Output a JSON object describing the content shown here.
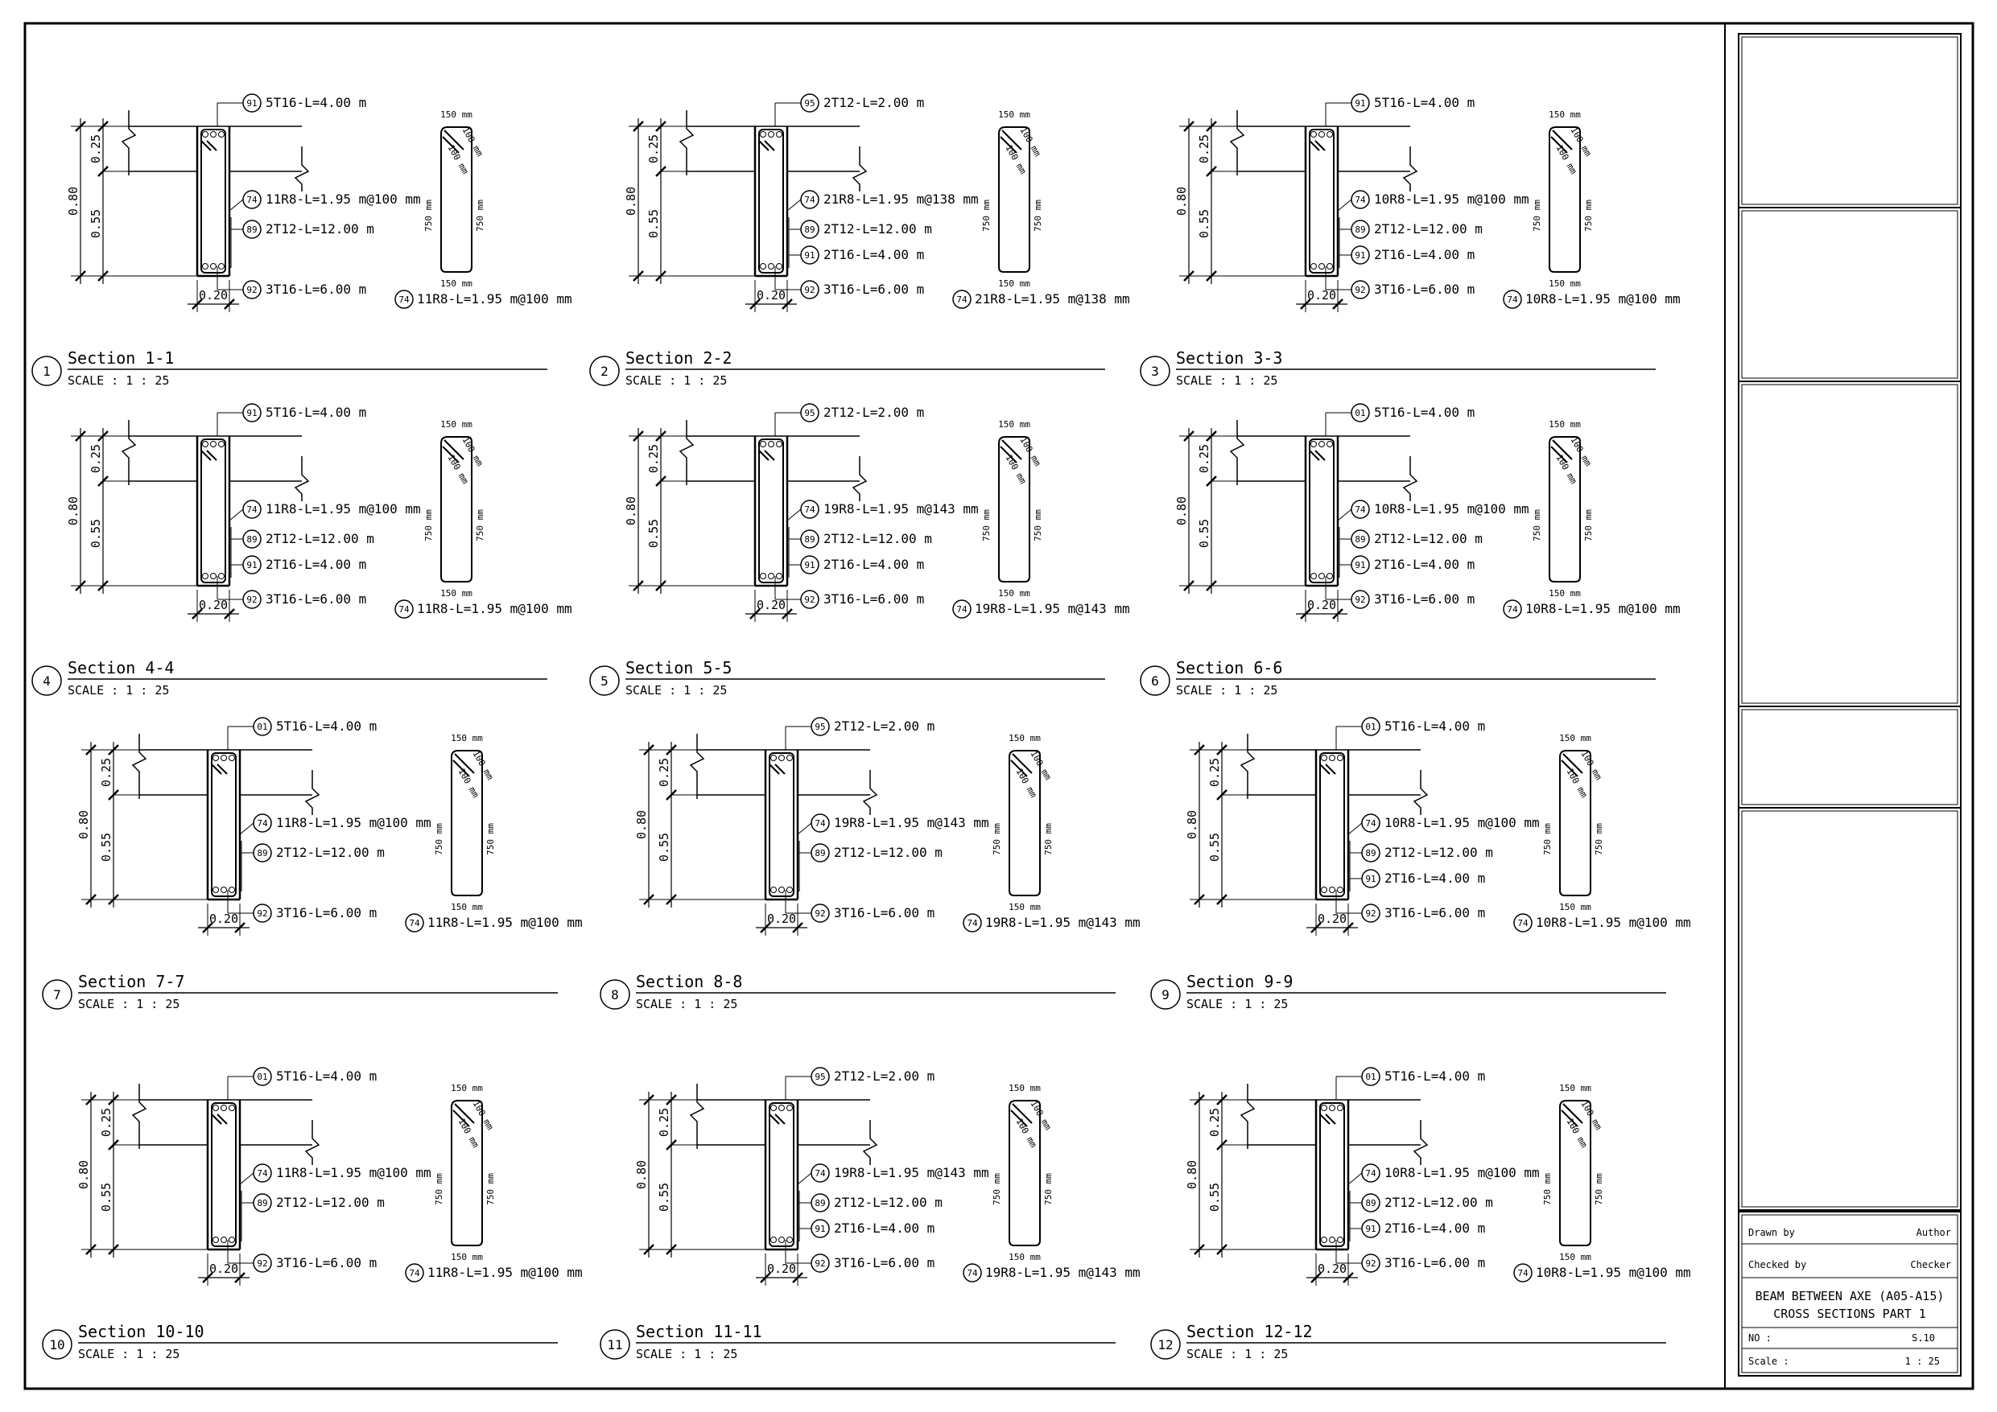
{
  "title_block": {
    "drawn_by_label": "Drawn by",
    "drawn_by_value": "Author",
    "checked_by_label": "Checked by",
    "checked_by_value": "Checker",
    "title_line1": "BEAM BETWEEN AXE (A05-A15)",
    "title_line2": "CROSS SECTIONS PART 1",
    "no_label": "NO :",
    "no_value": "S.10",
    "scale_label": "Scale :",
    "scale_value": "1 : 25"
  },
  "sections": [
    {
      "num": "1",
      "title": "Section 1-1",
      "scale": "SCALE :  1 : 25",
      "top_tag": "91",
      "top": "5T16-L=4.00 m",
      "stirrup_tag": "74",
      "stirrup": "11R8-L=1.95 m@100 mm",
      "callouts": [
        {
          "tag": "89",
          "text": "2T12-L=12.00 m"
        }
      ],
      "bottom_tag": "92",
      "bottom": "3T16-L=6.00 m",
      "dim_total": "0.80",
      "dim_top": "0.25",
      "dim_web": "0.55",
      "dim_width": "0.20",
      "shape": {
        "top": "150 mm",
        "hook1": "100 mm",
        "hook2": "100 mm",
        "left": "750 mm",
        "right": "750 mm",
        "bottom": "150 mm",
        "tag": "74",
        "label": "11R8-L=1.95 m@100 mm"
      }
    },
    {
      "num": "2",
      "title": "Section 2-2",
      "scale": "SCALE :  1 : 25",
      "top_tag": "95",
      "top": "2T12-L=2.00 m",
      "stirrup_tag": "74",
      "stirrup": "21R8-L=1.95 m@138 mm",
      "callouts": [
        {
          "tag": "89",
          "text": "2T12-L=12.00 m"
        },
        {
          "tag": "91",
          "text": "2T16-L=4.00 m"
        }
      ],
      "bottom_tag": "92",
      "bottom": "3T16-L=6.00 m",
      "dim_total": "0.80",
      "dim_top": "0.25",
      "dim_web": "0.55",
      "dim_width": "0.20",
      "shape": {
        "top": "150 mm",
        "hook1": "100 mm",
        "hook2": "100 mm",
        "left": "750 mm",
        "right": "750 mm",
        "bottom": "150 mm",
        "tag": "74",
        "label": "21R8-L=1.95 m@138 mm"
      }
    },
    {
      "num": "3",
      "title": "Section 3-3",
      "scale": "SCALE :  1 : 25",
      "top_tag": "91",
      "top": "5T16-L=4.00 m",
      "stirrup_tag": "74",
      "stirrup": "10R8-L=1.95 m@100 mm",
      "callouts": [
        {
          "tag": "89",
          "text": "2T12-L=12.00 m"
        },
        {
          "tag": "91",
          "text": "2T16-L=4.00 m"
        }
      ],
      "bottom_tag": "92",
      "bottom": "3T16-L=6.00 m",
      "dim_total": "0.80",
      "dim_top": "0.25",
      "dim_web": "0.55",
      "dim_width": "0.20",
      "shape": {
        "top": "150 mm",
        "hook1": "100 mm",
        "hook2": "100 mm",
        "left": "750 mm",
        "right": "750 mm",
        "bottom": "150 mm",
        "tag": "74",
        "label": "10R8-L=1.95 m@100 mm"
      }
    },
    {
      "num": "4",
      "title": "Section 4-4",
      "scale": "SCALE :  1 : 25",
      "top_tag": "91",
      "top": "5T16-L=4.00 m",
      "stirrup_tag": "74",
      "stirrup": "11R8-L=1.95 m@100 mm",
      "callouts": [
        {
          "tag": "89",
          "text": "2T12-L=12.00 m"
        },
        {
          "tag": "91",
          "text": "2T16-L=4.00 m"
        }
      ],
      "bottom_tag": "92",
      "bottom": "3T16-L=6.00 m",
      "dim_total": "0.80",
      "dim_top": "0.25",
      "dim_web": "0.55",
      "dim_width": "0.20",
      "shape": {
        "top": "150 mm",
        "hook1": "100 mm",
        "hook2": "100 mm",
        "left": "750 mm",
        "right": "750 mm",
        "bottom": "150 mm",
        "tag": "74",
        "label": "11R8-L=1.95 m@100 mm"
      }
    },
    {
      "num": "5",
      "title": "Section 5-5",
      "scale": "SCALE :  1 : 25",
      "top_tag": "95",
      "top": "2T12-L=2.00 m",
      "stirrup_tag": "74",
      "stirrup": "19R8-L=1.95 m@143 mm",
      "callouts": [
        {
          "tag": "89",
          "text": "2T12-L=12.00 m"
        },
        {
          "tag": "91",
          "text": "2T16-L=4.00 m"
        }
      ],
      "bottom_tag": "92",
      "bottom": "3T16-L=6.00 m",
      "dim_total": "0.80",
      "dim_top": "0.25",
      "dim_web": "0.55",
      "dim_width": "0.20",
      "shape": {
        "top": "150 mm",
        "hook1": "100 mm",
        "hook2": "100 mm",
        "left": "750 mm",
        "right": "750 mm",
        "bottom": "150 mm",
        "tag": "74",
        "label": "19R8-L=1.95 m@143 mm"
      }
    },
    {
      "num": "6",
      "title": "Section 6-6",
      "scale": "SCALE :  1 : 25",
      "top_tag": "01",
      "top": "5T16-L=4.00 m",
      "stirrup_tag": "74",
      "stirrup": "10R8-L=1.95 m@100 mm",
      "callouts": [
        {
          "tag": "89",
          "text": "2T12-L=12.00 m"
        },
        {
          "tag": "91",
          "text": "2T16-L=4.00 m"
        }
      ],
      "bottom_tag": "92",
      "bottom": "3T16-L=6.00 m",
      "dim_total": "0.80",
      "dim_top": "0.25",
      "dim_web": "0.55",
      "dim_width": "0.20",
      "shape": {
        "top": "150 mm",
        "hook1": "100 mm",
        "hook2": "100 mm",
        "left": "750 mm",
        "right": "750 mm",
        "bottom": "150 mm",
        "tag": "74",
        "label": "10R8-L=1.95 m@100 mm"
      }
    },
    {
      "num": "7",
      "title": "Section 7-7",
      "scale": "SCALE :  1 : 25",
      "top_tag": "01",
      "top": "5T16-L=4.00 m",
      "stirrup_tag": "74",
      "stirrup": "11R8-L=1.95 m@100 mm",
      "callouts": [
        {
          "tag": "89",
          "text": "2T12-L=12.00 m"
        }
      ],
      "bottom_tag": "92",
      "bottom": "3T16-L=6.00 m",
      "dim_total": "0.80",
      "dim_top": "0.25",
      "dim_web": "0.55",
      "dim_width": "0.20",
      "shape": {
        "top": "150 mm",
        "hook1": "100 mm",
        "hook2": "100 mm",
        "left": "750 mm",
        "right": "750 mm",
        "bottom": "150 mm",
        "tag": "74",
        "label": "11R8-L=1.95 m@100 mm"
      }
    },
    {
      "num": "8",
      "title": "Section 8-8",
      "scale": "SCALE :  1 : 25",
      "top_tag": "95",
      "top": "2T12-L=2.00 m",
      "stirrup_tag": "74",
      "stirrup": "19R8-L=1.95 m@143 mm",
      "callouts": [
        {
          "tag": "89",
          "text": "2T12-L=12.00 m"
        }
      ],
      "bottom_tag": "92",
      "bottom": "3T16-L=6.00 m",
      "dim_total": "0.80",
      "dim_top": "0.25",
      "dim_web": "0.55",
      "dim_width": "0.20",
      "shape": {
        "top": "150 mm",
        "hook1": "100 mm",
        "hook2": "100 mm",
        "left": "750 mm",
        "right": "750 mm",
        "bottom": "150 mm",
        "tag": "74",
        "label": "19R8-L=1.95 m@143 mm"
      }
    },
    {
      "num": "9",
      "title": "Section 9-9",
      "scale": "SCALE :  1 : 25",
      "top_tag": "01",
      "top": "5T16-L=4.00 m",
      "stirrup_tag": "74",
      "stirrup": "10R8-L=1.95 m@100 mm",
      "callouts": [
        {
          "tag": "89",
          "text": "2T12-L=12.00 m"
        },
        {
          "tag": "91",
          "text": "2T16-L=4.00 m"
        }
      ],
      "bottom_tag": "92",
      "bottom": "3T16-L=6.00 m",
      "dim_total": "0.80",
      "dim_top": "0.25",
      "dim_web": "0.55",
      "dim_width": "0.20",
      "shape": {
        "top": "150 mm",
        "hook1": "100 mm",
        "hook2": "100 mm",
        "left": "750 mm",
        "right": "750 mm",
        "bottom": "150 mm",
        "tag": "74",
        "label": "10R8-L=1.95 m@100 mm"
      }
    },
    {
      "num": "10",
      "title": "Section 10-10",
      "scale": "SCALE :  1 : 25",
      "top_tag": "01",
      "top": "5T16-L=4.00 m",
      "stirrup_tag": "74",
      "stirrup": "11R8-L=1.95 m@100 mm",
      "callouts": [
        {
          "tag": "89",
          "text": "2T12-L=12.00 m"
        }
      ],
      "bottom_tag": "92",
      "bottom": "3T16-L=6.00 m",
      "dim_total": "0.80",
      "dim_top": "0.25",
      "dim_web": "0.55",
      "dim_width": "0.20",
      "shape": {
        "top": "150 mm",
        "hook1": "100 mm",
        "hook2": "100 mm",
        "left": "750 mm",
        "right": "750 mm",
        "bottom": "150 mm",
        "tag": "74",
        "label": "11R8-L=1.95 m@100 mm"
      }
    },
    {
      "num": "11",
      "title": "Section 11-11",
      "scale": "SCALE :  1 : 25",
      "top_tag": "95",
      "top": "2T12-L=2.00 m",
      "stirrup_tag": "74",
      "stirrup": "19R8-L=1.95 m@143 mm",
      "callouts": [
        {
          "tag": "89",
          "text": "2T12-L=12.00 m"
        },
        {
          "tag": "91",
          "text": "2T16-L=4.00 m"
        }
      ],
      "bottom_tag": "92",
      "bottom": "3T16-L=6.00 m",
      "dim_total": "0.80",
      "dim_top": "0.25",
      "dim_web": "0.55",
      "dim_width": "0.20",
      "shape": {
        "top": "150 mm",
        "hook1": "100 mm",
        "hook2": "100 mm",
        "left": "750 mm",
        "right": "750 mm",
        "bottom": "150 mm",
        "tag": "74",
        "label": "19R8-L=1.95 m@143 mm"
      }
    },
    {
      "num": "12",
      "title": "Section 12-12",
      "scale": "SCALE :  1 : 25",
      "top_tag": "01",
      "top": "5T16-L=4.00 m",
      "stirrup_tag": "74",
      "stirrup": "10R8-L=1.95 m@100 mm",
      "callouts": [
        {
          "tag": "89",
          "text": "2T12-L=12.00 m"
        },
        {
          "tag": "91",
          "text": "2T16-L=4.00 m"
        }
      ],
      "bottom_tag": "92",
      "bottom": "3T16-L=6.00 m",
      "dim_total": "0.80",
      "dim_top": "0.25",
      "dim_web": "0.55",
      "dim_width": "0.20",
      "shape": {
        "top": "150 mm",
        "hook1": "100 mm",
        "hook2": "100 mm",
        "left": "750 mm",
        "right": "750 mm",
        "bottom": "150 mm",
        "tag": "74",
        "label": "10R8-L=1.95 m@100 mm"
      }
    }
  ]
}
